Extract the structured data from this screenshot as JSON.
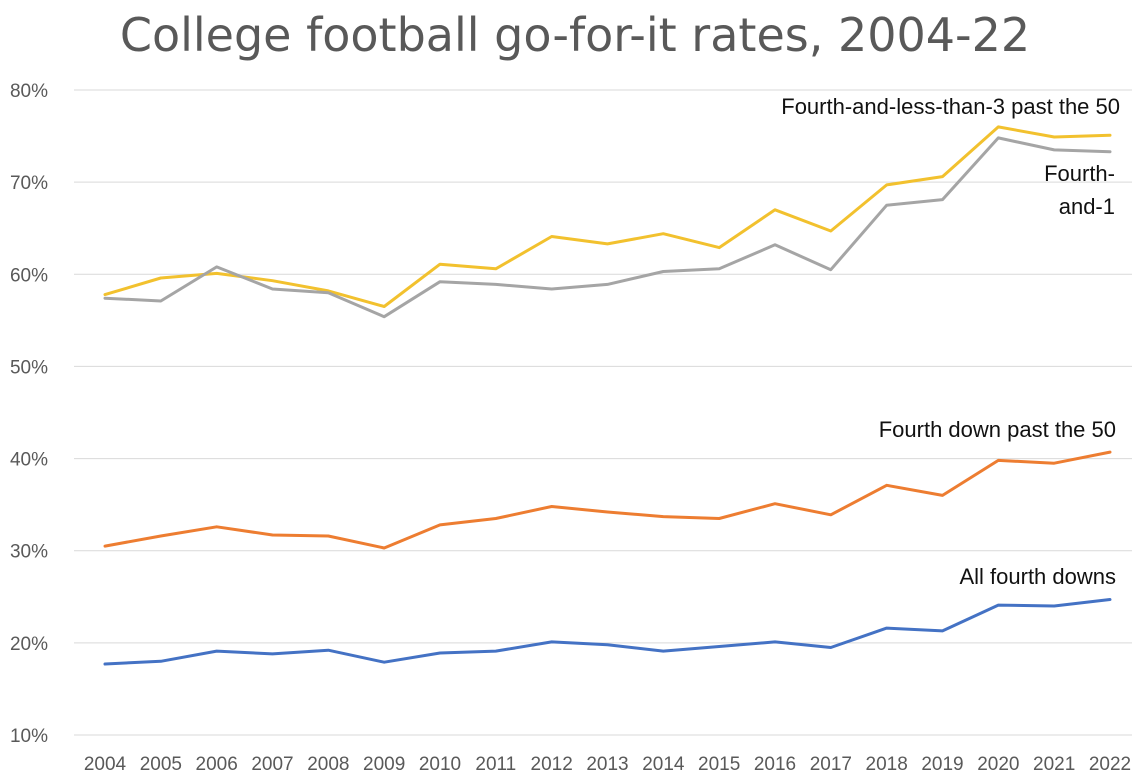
{
  "chart_data": {
    "type": "line",
    "title": "College football go-for-it rates, 2004-22",
    "xlabel": "",
    "ylabel": "",
    "x": [
      "2004",
      "2005",
      "2006",
      "2007",
      "2008",
      "2009",
      "2010",
      "2011",
      "2012",
      "2013",
      "2014",
      "2015",
      "2016",
      "2017",
      "2018",
      "2019",
      "2020",
      "2021",
      "2022"
    ],
    "ylim": [
      10,
      80
    ],
    "yticks": [
      "10%",
      "20%",
      "30%",
      "40%",
      "50%",
      "60%",
      "70%",
      "80%"
    ],
    "grid": true,
    "legend": "none",
    "series": [
      {
        "name": "Fourth-and-less-than-3 past the 50",
        "color": "#f2c12e",
        "values": [
          57.8,
          59.6,
          60.1,
          59.3,
          58.2,
          56.5,
          61.1,
          60.6,
          64.1,
          63.3,
          64.4,
          62.9,
          67.0,
          64.7,
          69.7,
          70.6,
          76.0,
          74.9,
          75.1
        ]
      },
      {
        "name": "Fourth-and-1",
        "color": "#a5a5a5",
        "values": [
          57.4,
          57.1,
          60.8,
          58.4,
          58.0,
          55.4,
          59.2,
          58.9,
          58.4,
          58.9,
          60.3,
          60.6,
          63.2,
          60.5,
          67.5,
          68.1,
          74.8,
          73.5,
          73.3
        ]
      },
      {
        "name": "Fourth down past the 50",
        "color": "#ed7d31",
        "values": [
          30.5,
          31.6,
          32.6,
          31.7,
          31.6,
          30.3,
          32.8,
          33.5,
          34.8,
          34.2,
          33.7,
          33.5,
          35.1,
          33.9,
          37.1,
          36.0,
          39.8,
          39.5,
          40.7
        ]
      },
      {
        "name": "All fourth downs",
        "color": "#4472c4",
        "values": [
          17.7,
          18.0,
          19.1,
          18.8,
          19.2,
          17.9,
          18.9,
          19.1,
          20.1,
          19.8,
          19.1,
          19.6,
          20.1,
          19.5,
          21.6,
          21.3,
          24.1,
          24.0,
          24.7
        ]
      }
    ],
    "annotations": [
      {
        "series": 0,
        "lines": [
          "Fourth-and-less-than-3 past the 50"
        ]
      },
      {
        "series": 1,
        "lines": [
          "Fourth-",
          "and-1"
        ]
      },
      {
        "series": 2,
        "lines": [
          "Fourth down past the 50"
        ]
      },
      {
        "series": 3,
        "lines": [
          "All fourth downs"
        ]
      }
    ]
  }
}
